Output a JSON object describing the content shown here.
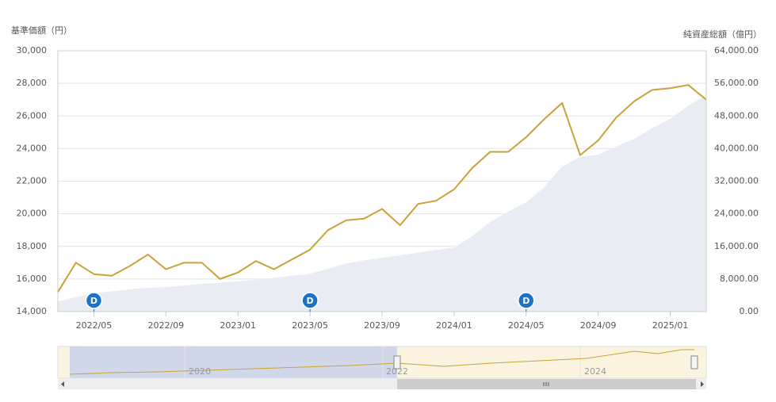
{
  "chart_data": {
    "type": "line",
    "y_axis_title": "基準価額（円）",
    "y2_axis_title": "純資産総額（億円）",
    "x": [
      "2022/03",
      "2022/04",
      "2022/05",
      "2022/06",
      "2022/07",
      "2022/08",
      "2022/09",
      "2022/10",
      "2022/11",
      "2022/12",
      "2023/01",
      "2023/02",
      "2023/03",
      "2023/04",
      "2023/05",
      "2023/06",
      "2023/07",
      "2023/08",
      "2023/09",
      "2023/10",
      "2023/11",
      "2023/12",
      "2024/01",
      "2024/02",
      "2024/03",
      "2024/04",
      "2024/05",
      "2024/06",
      "2024/07",
      "2024/08",
      "2024/09",
      "2024/10",
      "2024/11",
      "2024/12",
      "2025/01",
      "2025/02",
      "2025/03"
    ],
    "xlim": [
      "2022/03",
      "2025/03"
    ],
    "xticks": [
      "2022/05",
      "2022/09",
      "2023/01",
      "2023/05",
      "2023/09",
      "2024/01",
      "2024/05",
      "2024/09",
      "2025/01"
    ],
    "series": [
      {
        "type": "area",
        "axis": "y2",
        "color": "#e9edf3",
        "values": [
          2500,
          3500,
          4500,
          5000,
          5500,
          5800,
          6000,
          6400,
          6800,
          7100,
          7400,
          7800,
          8300,
          8800,
          9300,
          10500,
          11800,
          12600,
          13200,
          13800,
          14500,
          15100,
          15700,
          18500,
          22000,
          24500,
          26800,
          30500,
          35600,
          38000,
          38500,
          40500,
          42400,
          45000,
          47300,
          50500,
          53100
        ]
      },
      {
        "type": "line",
        "color": "#c9a23a",
        "values": [
          15200,
          17000,
          16300,
          16200,
          16800,
          17500,
          16600,
          17000,
          17000,
          16000,
          16400,
          17100,
          16600,
          17200,
          17800,
          19000,
          19600,
          19700,
          20300,
          19300,
          20600,
          20800,
          21500,
          22800,
          23800,
          23800,
          24700,
          25800,
          26800,
          23600,
          24500,
          25900,
          26900,
          27600,
          27700,
          27900,
          27000
        ]
      }
    ],
    "ylim": [
      14000,
      30000
    ],
    "yticks": [
      {
        "value": 14000,
        "label": "14,000"
      },
      {
        "value": 16000,
        "label": "16,000"
      },
      {
        "value": 18000,
        "label": "18,000"
      },
      {
        "value": 20000,
        "label": "20,000"
      },
      {
        "value": 22000,
        "label": "22,000"
      },
      {
        "value": 24000,
        "label": "24,000"
      },
      {
        "value": 26000,
        "label": "26,000"
      },
      {
        "value": 28000,
        "label": "28,000"
      },
      {
        "value": 30000,
        "label": "30,000"
      }
    ],
    "y2lim": [
      0,
      64000
    ],
    "y2ticks": [
      {
        "value": 0,
        "label": "0.00"
      },
      {
        "value": 8000,
        "label": "8,000.00"
      },
      {
        "value": 16000,
        "label": "16,000.00"
      },
      {
        "value": 24000,
        "label": "24,000.00"
      },
      {
        "value": 32000,
        "label": "32,000.00"
      },
      {
        "value": 40000,
        "label": "40,000.00"
      },
      {
        "value": 48000,
        "label": "48,000.00"
      },
      {
        "value": 56000,
        "label": "56,000.00"
      },
      {
        "value": 64000,
        "label": "64,000.00"
      }
    ],
    "grid": true,
    "dividend_marks": [
      {
        "x": "2022/05",
        "label": "D"
      },
      {
        "x": "2023/05",
        "label": "D"
      },
      {
        "x": "2024/05",
        "label": "D"
      }
    ],
    "navigator_labels": [
      "2020",
      "2022",
      "2024"
    ]
  }
}
